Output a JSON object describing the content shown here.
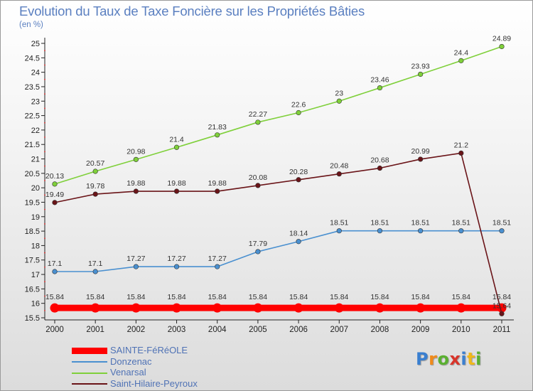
{
  "chart_data": {
    "type": "line",
    "title": "Evolution du Taux de Taxe Foncière sur les Propriétés Bâties",
    "unit": "(en %)",
    "x": [
      "2000",
      "2001",
      "2002",
      "2003",
      "2004",
      "2005",
      "2006",
      "2007",
      "2008",
      "2009",
      "2010",
      "2011"
    ],
    "ylim": [
      15.5,
      25
    ],
    "ytick_step": 0.5,
    "grid": false,
    "legend_position": "bottom-left",
    "series": [
      {
        "name": "SAINTE-FéRéOLE",
        "color": "#ff0000",
        "values": [
          15.84,
          15.84,
          15.84,
          15.84,
          15.84,
          15.84,
          15.84,
          15.84,
          15.84,
          15.84,
          15.84,
          15.84
        ]
      },
      {
        "name": "Donzenac",
        "color": "#4a90d0",
        "values": [
          17.1,
          17.1,
          17.27,
          17.27,
          17.27,
          17.79,
          18.14,
          18.51,
          18.51,
          18.51,
          18.51,
          18.51
        ]
      },
      {
        "name": "Venarsal",
        "color": "#7fd03a",
        "values": [
          20.13,
          20.57,
          20.98,
          21.4,
          21.83,
          22.27,
          22.6,
          23,
          23.46,
          23.93,
          24.4,
          24.89
        ]
      },
      {
        "name": "Saint-Hilaire-Peyroux",
        "color": "#6a1418",
        "values": [
          19.49,
          19.78,
          19.88,
          19.88,
          19.88,
          20.08,
          20.28,
          20.48,
          20.68,
          20.99,
          21.2,
          15.64
        ]
      }
    ]
  },
  "brand": {
    "letters": [
      "P",
      "r",
      "o",
      "x",
      "i",
      "t",
      "i"
    ],
    "colors": [
      "#3a7fd0",
      "#f08a1a",
      "#5ab030",
      "#d8342a",
      "#3a7fd0",
      "#f0b81a",
      "#5ab030"
    ]
  }
}
